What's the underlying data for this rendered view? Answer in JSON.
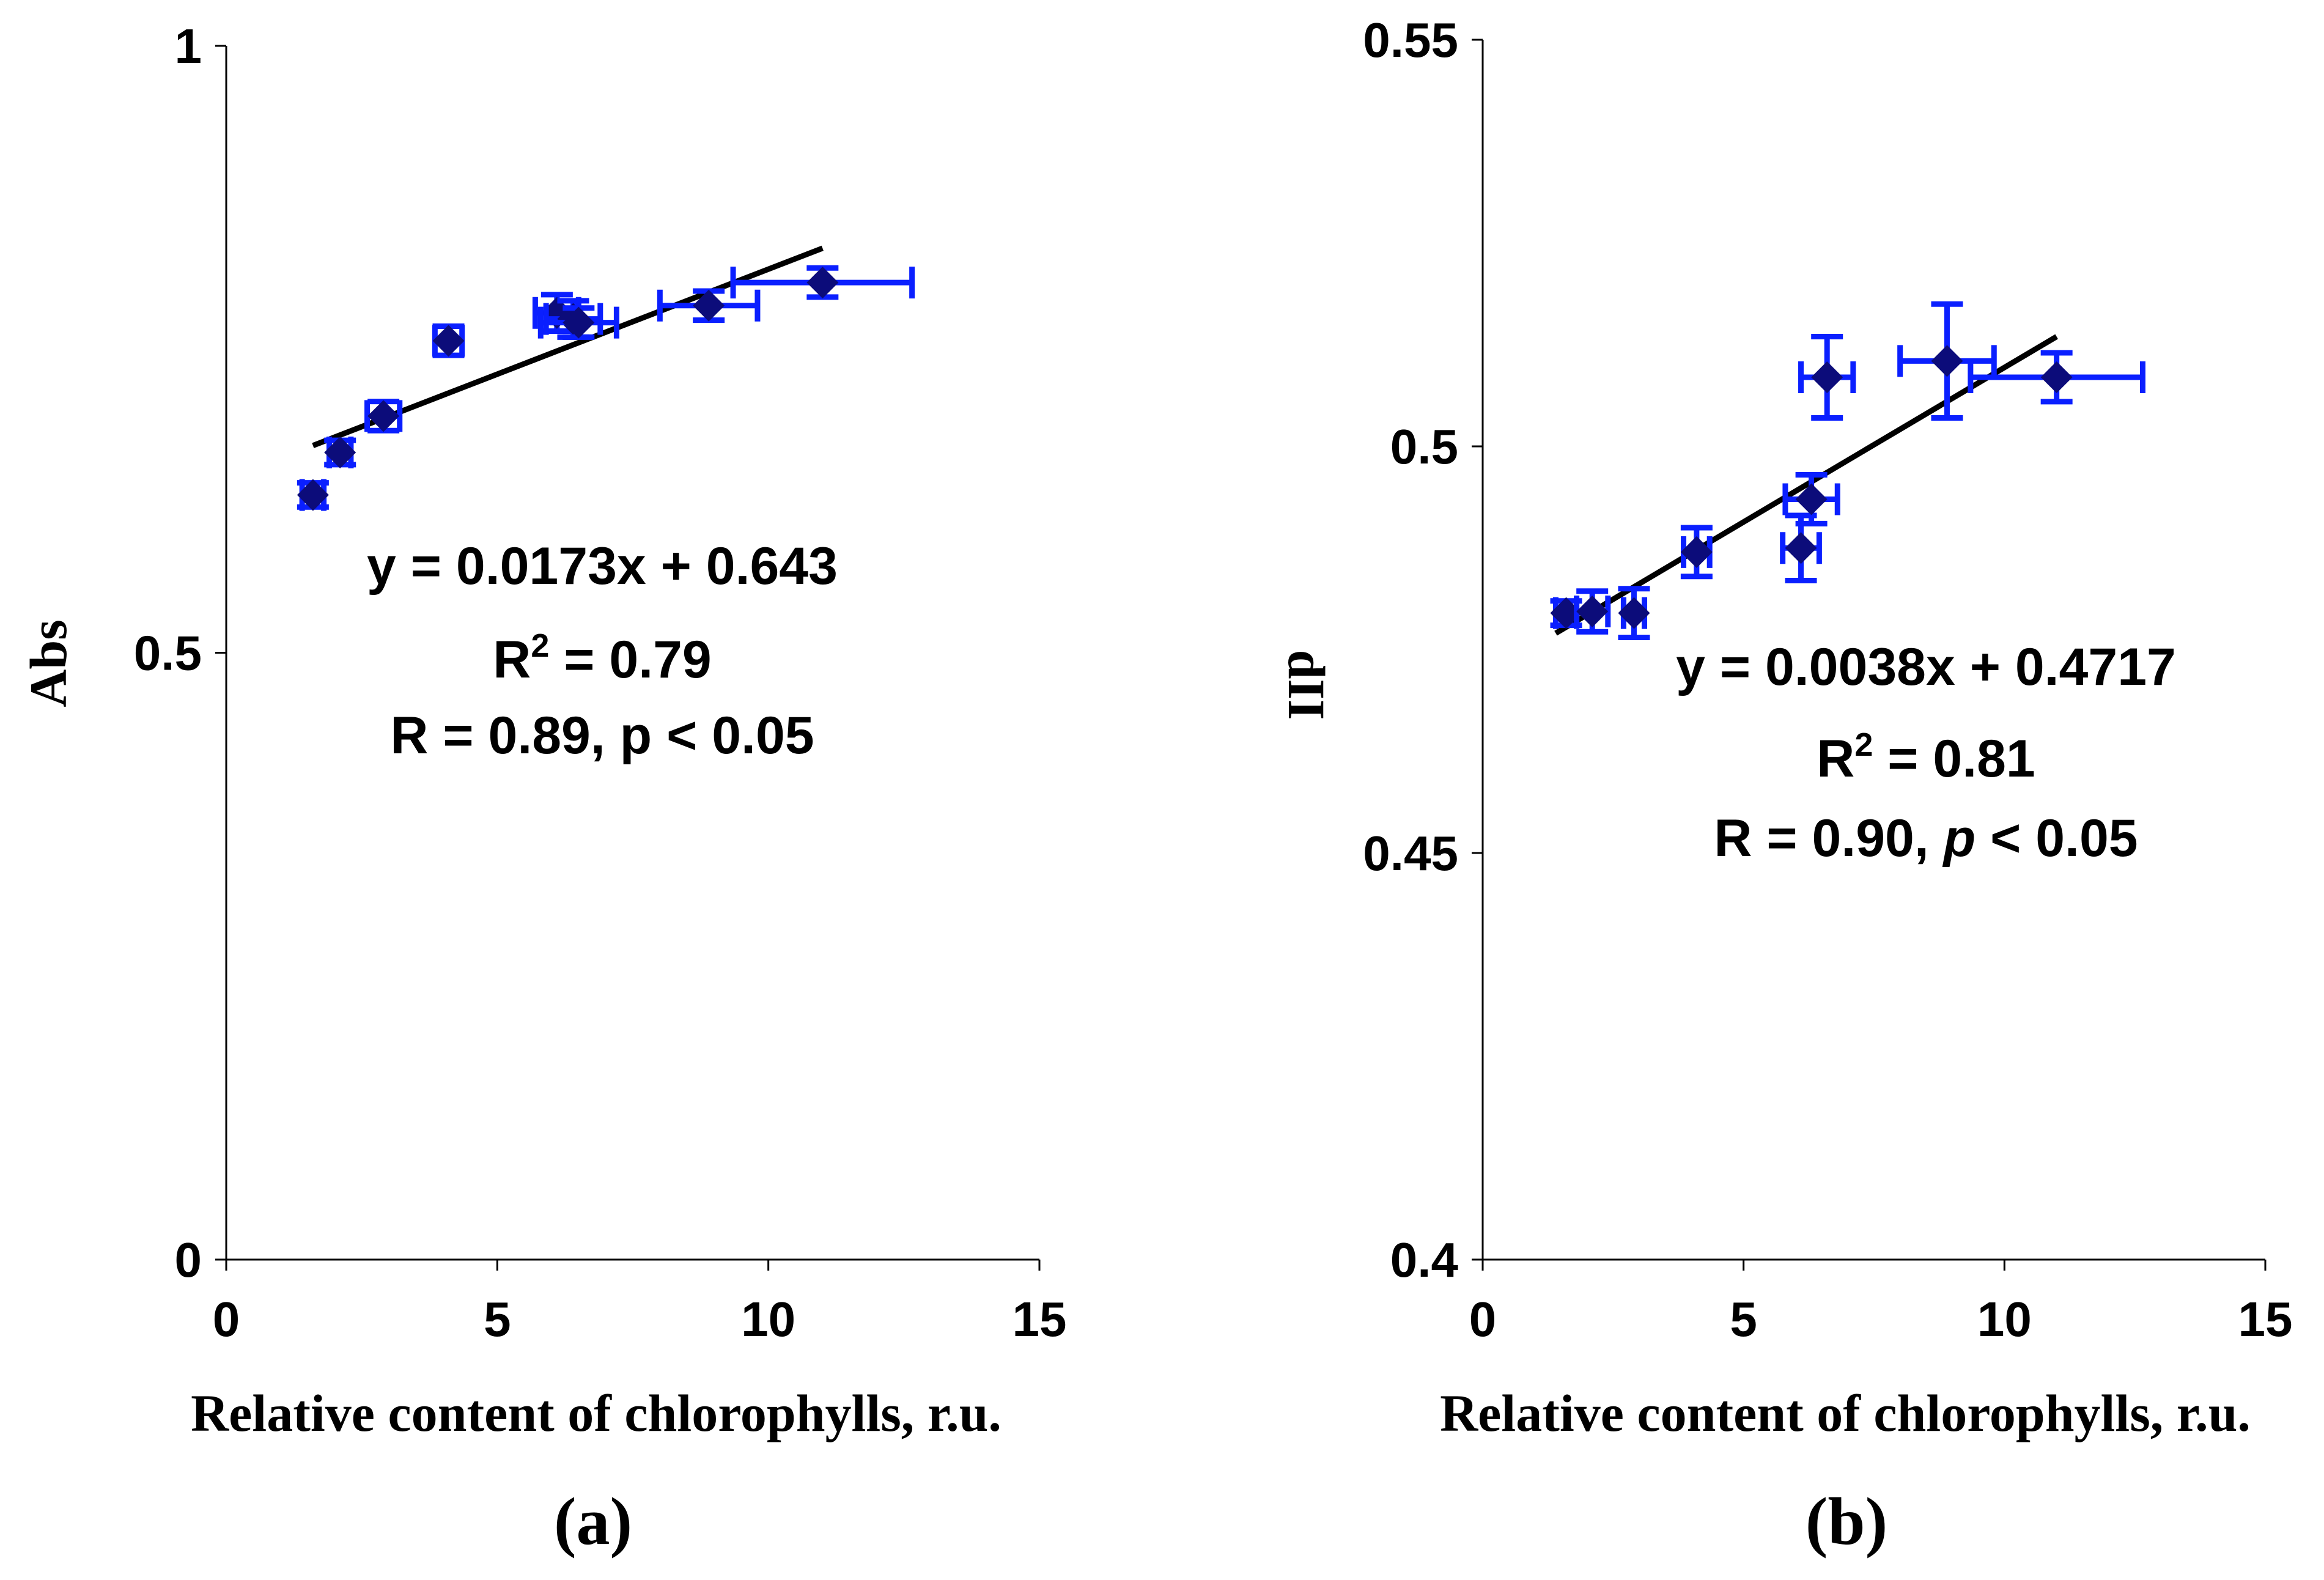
{
  "chart_data": [
    {
      "type": "scatter",
      "panel_label": "(a)",
      "xlabel": "Relative content of chlorophylls, r.u.",
      "ylabel": "Abs",
      "xlim": [
        0,
        15
      ],
      "ylim": [
        0,
        1
      ],
      "xticks": [
        "0",
        "5",
        "10",
        "15"
      ],
      "yticks": [
        "0",
        "0.5",
        "1"
      ],
      "xtick_values": [
        0,
        5,
        10,
        15
      ],
      "ytick_values": [
        0,
        0.5,
        1
      ],
      "points": [
        {
          "x": 1.6,
          "y": 0.63,
          "xerr": 0.2,
          "yerr": 0.01
        },
        {
          "x": 2.1,
          "y": 0.665,
          "xerr": 0.2,
          "yerr": 0.01
        },
        {
          "x": 2.9,
          "y": 0.695,
          "xerr": 0.3,
          "yerr": 0.012
        },
        {
          "x": 4.1,
          "y": 0.757,
          "xerr": 0.25,
          "yerr": 0.012
        },
        {
          "x": 6.1,
          "y": 0.78,
          "xerr": 0.4,
          "yerr": 0.015
        },
        {
          "x": 6.4,
          "y": 0.775,
          "xerr": 0.5,
          "yerr": 0.015
        },
        {
          "x": 6.5,
          "y": 0.772,
          "xerr": 0.7,
          "yerr": 0.012
        },
        {
          "x": 8.9,
          "y": 0.786,
          "xerr": 0.9,
          "yerr": 0.012
        },
        {
          "x": 11.0,
          "y": 0.805,
          "xerr": 1.65,
          "yerr": 0.012
        }
      ],
      "trendline": {
        "slope": 0.0173,
        "intercept": 0.643,
        "x_range": [
          1.6,
          11.0
        ]
      },
      "annotations": {
        "equation": "y = 0.0173x + 0.643",
        "r2_prefix": "R",
        "r2_sup": "2",
        "r2_value": " = 0.79",
        "r_prefix": "R = 0.89, ",
        "p_symbol": "p",
        "p_suffix": " < 0.05"
      }
    },
    {
      "type": "scatter",
      "panel_label": "(b)",
      "xlabel": "Relative content of chlorophylls, r.u.",
      "ylabel": "dII",
      "xlim": [
        0,
        15
      ],
      "ylim": [
        0.4,
        0.55
      ],
      "xticks": [
        "0",
        "5",
        "10",
        "15"
      ],
      "yticks": [
        "0.4",
        "0.45",
        "0.5",
        "0.55"
      ],
      "xtick_values": [
        0,
        5,
        10,
        15
      ],
      "ytick_values": [
        0.4,
        0.45,
        0.5,
        0.55
      ],
      "points": [
        {
          "x": 1.6,
          "y": 0.4795,
          "xerr": 0.2,
          "yerr": 0.0015
        },
        {
          "x": 2.1,
          "y": 0.4797,
          "xerr": 0.3,
          "yerr": 0.0025
        },
        {
          "x": 2.9,
          "y": 0.4795,
          "xerr": 0.2,
          "yerr": 0.003
        },
        {
          "x": 4.1,
          "y": 0.487,
          "xerr": 0.25,
          "yerr": 0.003
        },
        {
          "x": 6.1,
          "y": 0.4875,
          "xerr": 0.35,
          "yerr": 0.004
        },
        {
          "x": 6.3,
          "y": 0.4935,
          "xerr": 0.5,
          "yerr": 0.003
        },
        {
          "x": 6.6,
          "y": 0.5085,
          "xerr": 0.5,
          "yerr": 0.005
        },
        {
          "x": 8.9,
          "y": 0.5105,
          "xerr": 0.9,
          "yerr": 0.007
        },
        {
          "x": 11.0,
          "y": 0.5085,
          "xerr": 1.65,
          "yerr": 0.003
        }
      ],
      "trendline": {
        "slope": 0.0038,
        "intercept": 0.4717,
        "x_range": [
          1.4,
          11.0
        ]
      },
      "annotations": {
        "equation": "y = 0.0038x + 0.4717",
        "r2_prefix": "R",
        "r2_sup": "2",
        "r2_value": " = 0.81",
        "r_prefix": "R = 0.90, ",
        "p_symbol": "p",
        "p_suffix": " < 0.05"
      }
    }
  ]
}
